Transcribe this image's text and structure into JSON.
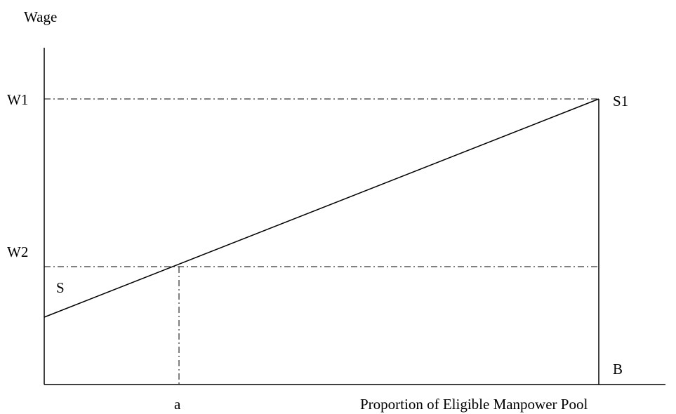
{
  "axes": {
    "y_label": "Wage",
    "x_label": "Proportion of Eligible Manpower Pool"
  },
  "wage_levels": {
    "high": "W1",
    "low": "W2"
  },
  "curve": {
    "start_label": "S",
    "end_label": "S1"
  },
  "points": {
    "a_label": "a",
    "b_label": "B"
  },
  "colors": {
    "ink": "#000000",
    "background": "#ffffff"
  }
}
